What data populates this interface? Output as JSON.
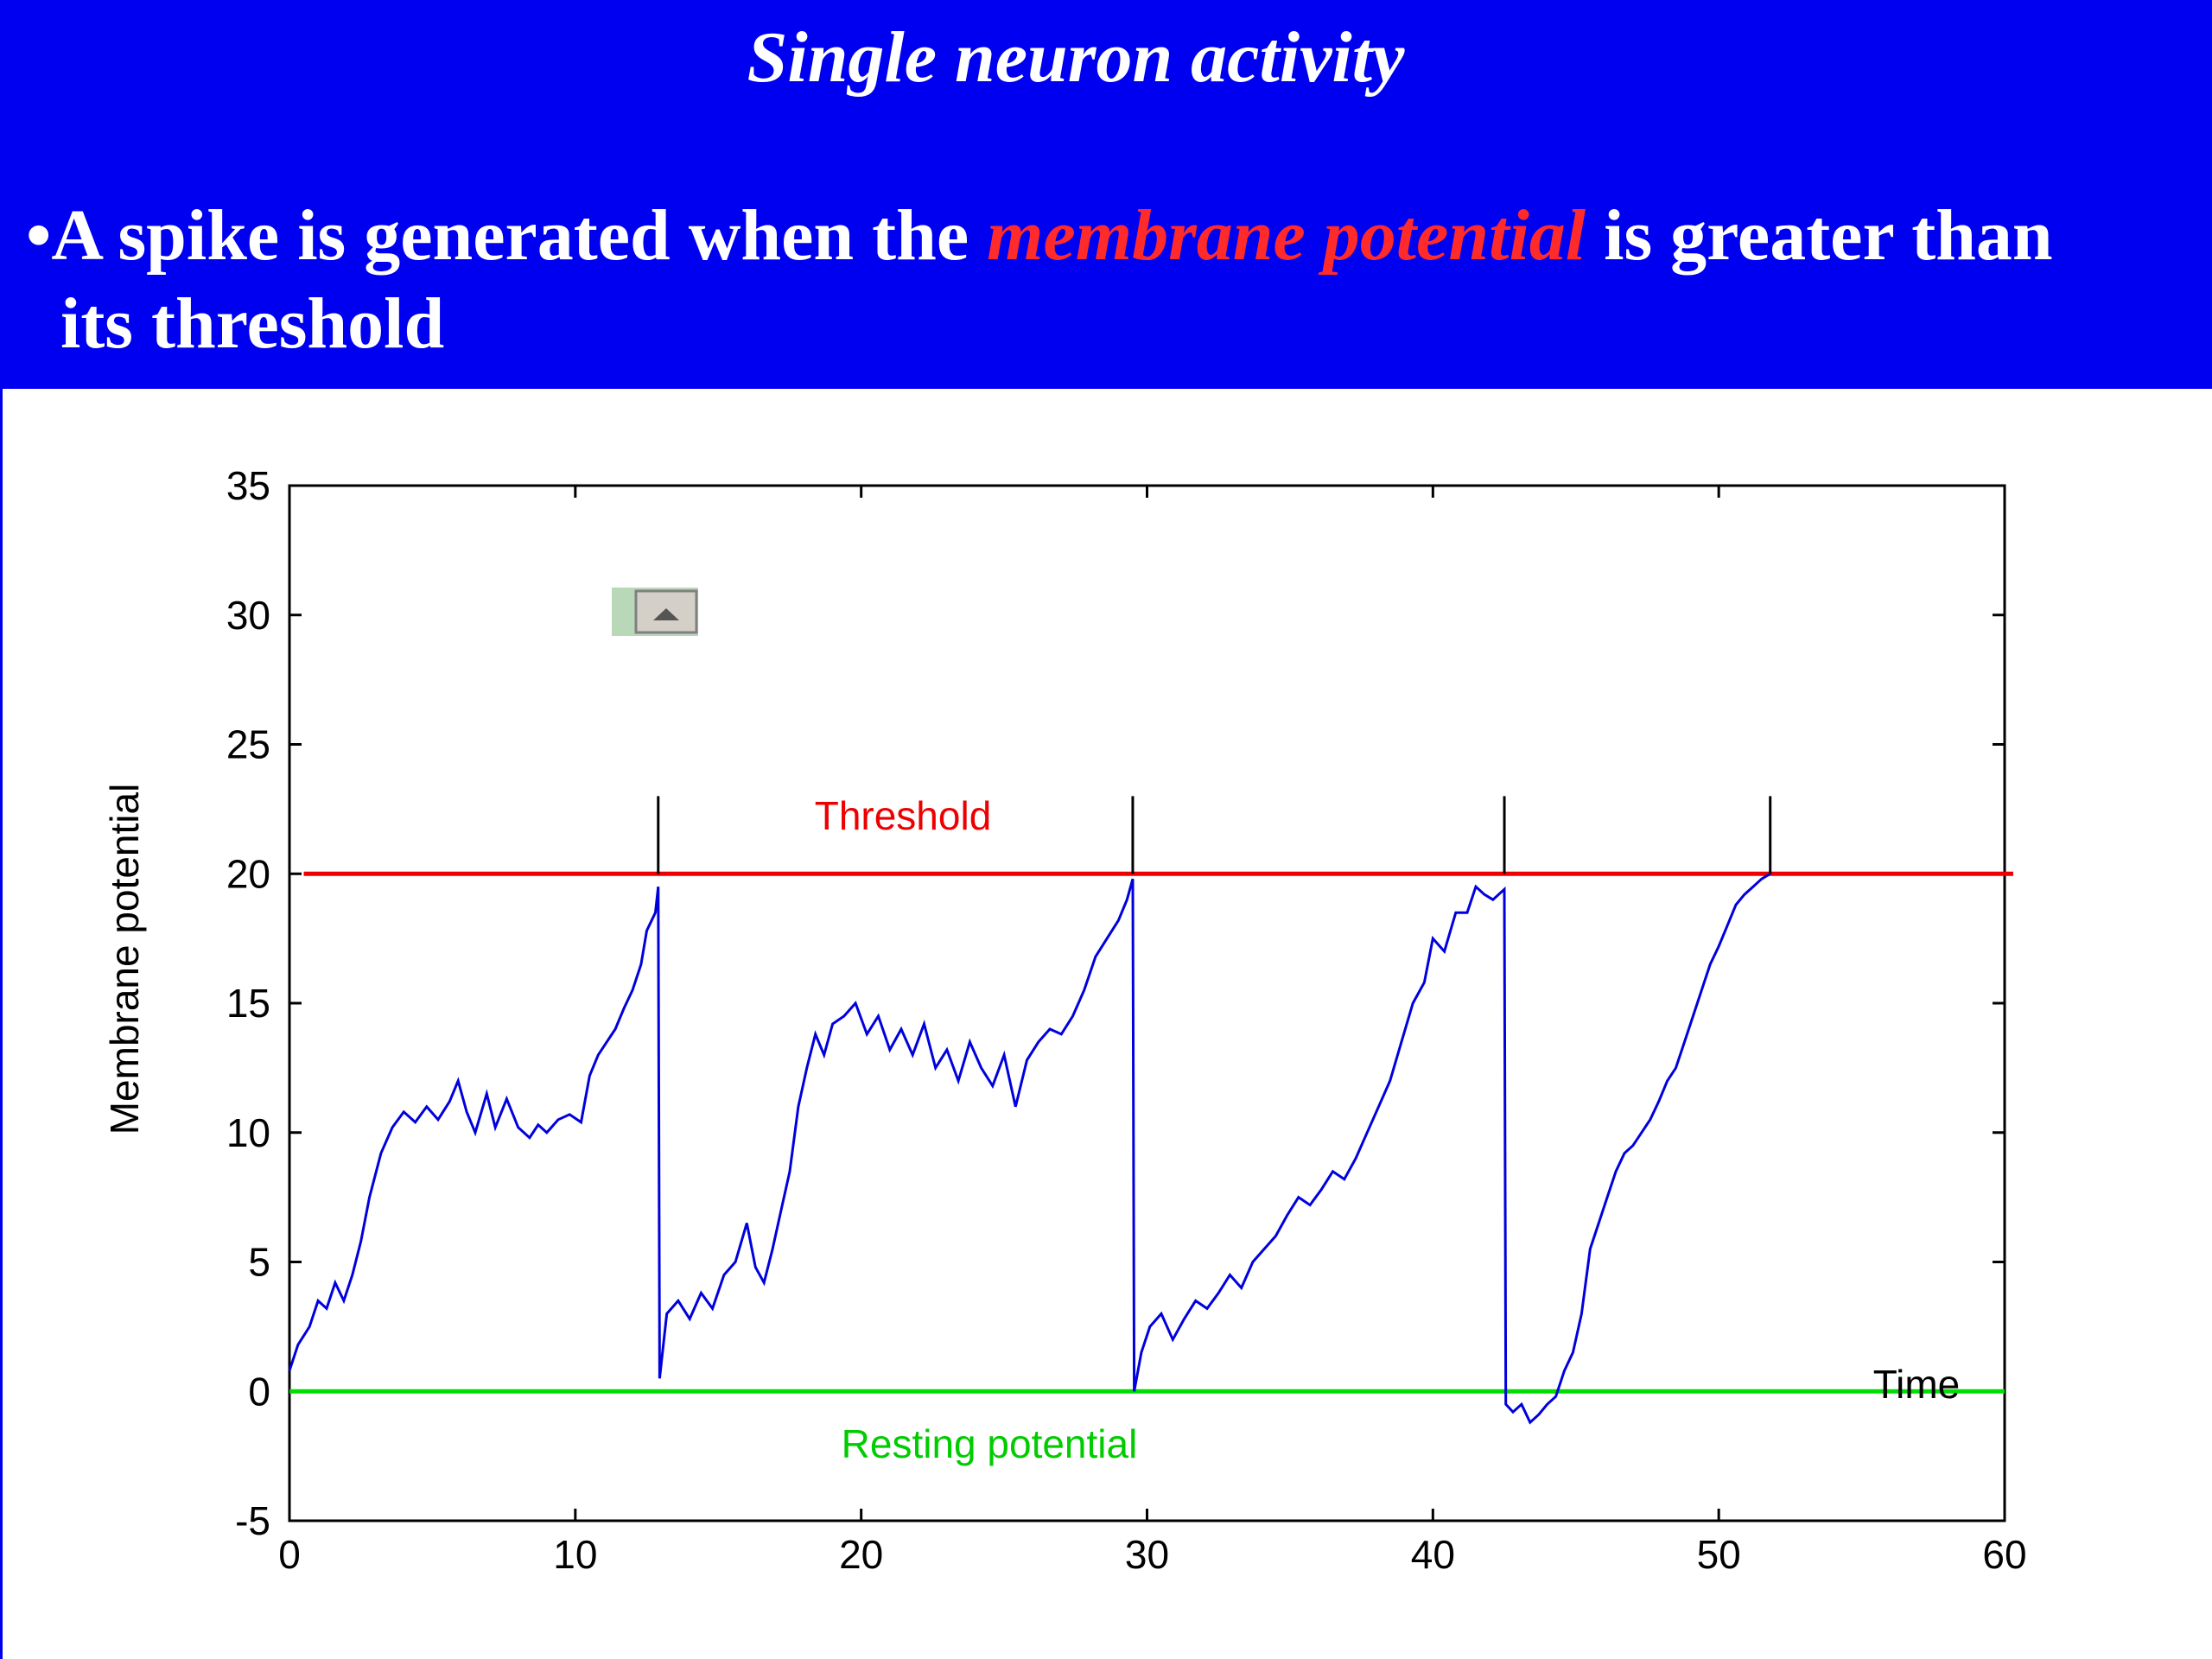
{
  "slide": {
    "title": "Single neuron activity",
    "bullet_marker": "•",
    "bullet_pre": "A spike is generated when the ",
    "bullet_highlight": "membrane potential",
    "bullet_post": " is greater than",
    "bullet_line2": "its threshold"
  },
  "colors": {
    "header_bg": "#0000f0",
    "highlight": "#ff2a2a",
    "trace": "#0000dd",
    "threshold": "#ee0000",
    "resting": "#00dd00"
  },
  "chart_data": {
    "type": "line",
    "title": "",
    "xlabel": "Time",
    "ylabel": "Membrane potential",
    "xlim": [
      0,
      60
    ],
    "ylim": [
      -5,
      35
    ],
    "xticks": [
      0,
      10,
      20,
      30,
      40,
      50,
      60
    ],
    "yticks": [
      -5,
      0,
      5,
      10,
      15,
      20,
      25,
      30,
      35
    ],
    "grid": false,
    "threshold": {
      "label": "Threshold",
      "value": 20
    },
    "resting": {
      "label": "Resting potential",
      "value": 0
    },
    "spike_times": [
      12.9,
      29.5,
      42.5,
      51.8
    ],
    "series": [
      {
        "name": "",
        "x": [
          0,
          0.3,
          0.7,
          1.0,
          1.3,
          1.6,
          1.9,
          2.2,
          2.5,
          2.8,
          3.2,
          3.6,
          4.0,
          4.4,
          4.8,
          5.2,
          5.6,
          5.9,
          6.2,
          6.5,
          6.9,
          7.2,
          7.6,
          8.0,
          8.4,
          8.7,
          9.0,
          9.4,
          9.8,
          10.2,
          10.5,
          10.8,
          11.1,
          11.4,
          11.7,
          12.0,
          12.3,
          12.5,
          12.8,
          12.9,
          12.95,
          13.2,
          13.6,
          14.0,
          14.4,
          14.8,
          15.2,
          15.6,
          16.0,
          16.3,
          16.6,
          16.9,
          17.2,
          17.5,
          17.8,
          18.1,
          18.4,
          18.7,
          19.0,
          19.4,
          19.8,
          20.2,
          20.6,
          21.0,
          21.4,
          21.8,
          22.2,
          22.6,
          23.0,
          23.4,
          23.8,
          24.2,
          24.6,
          25.0,
          25.4,
          25.8,
          26.2,
          26.6,
          27.0,
          27.4,
          27.8,
          28.2,
          28.6,
          29.0,
          29.3,
          29.5,
          29.55,
          29.8,
          30.1,
          30.5,
          30.9,
          31.3,
          31.7,
          32.1,
          32.5,
          32.9,
          33.3,
          33.7,
          34.1,
          34.5,
          34.9,
          35.3,
          35.7,
          36.1,
          36.5,
          36.9,
          37.3,
          37.7,
          38.1,
          38.5,
          38.9,
          39.3,
          39.7,
          40.0,
          40.4,
          40.8,
          41.2,
          41.5,
          41.8,
          42.1,
          42.5,
          42.55,
          42.8,
          43.1,
          43.4,
          43.7,
          44.0,
          44.3,
          44.6,
          44.9,
          45.2,
          45.5,
          45.8,
          46.1,
          46.4,
          46.7,
          47.0,
          47.3,
          47.6,
          47.9,
          48.2,
          48.5,
          48.8,
          49.1,
          49.4,
          49.7,
          50.0,
          50.3,
          50.6,
          50.9,
          51.2,
          51.5,
          51.8
        ],
        "y": [
          0.8,
          1.8,
          2.5,
          3.5,
          3.2,
          4.2,
          3.5,
          4.5,
          5.8,
          7.5,
          9.2,
          10.2,
          10.8,
          10.4,
          11.0,
          10.5,
          11.2,
          12.0,
          10.8,
          10.0,
          11.5,
          10.2,
          11.3,
          10.2,
          9.8,
          10.3,
          10.0,
          10.5,
          10.7,
          10.4,
          12.2,
          13.0,
          13.5,
          14.0,
          14.8,
          15.5,
          16.5,
          17.8,
          18.5,
          19.5,
          0.5,
          3.0,
          3.5,
          2.8,
          3.8,
          3.2,
          4.5,
          5.0,
          6.5,
          4.8,
          4.2,
          5.5,
          7.0,
          8.5,
          11.0,
          12.5,
          13.8,
          13.0,
          14.2,
          14.5,
          15.0,
          13.8,
          14.5,
          13.2,
          14.0,
          13.0,
          14.2,
          12.5,
          13.2,
          12.0,
          13.5,
          12.5,
          11.8,
          13.0,
          11.0,
          12.8,
          13.5,
          14.0,
          13.8,
          14.5,
          15.5,
          16.8,
          17.5,
          18.2,
          19.0,
          19.8,
          0.0,
          1.5,
          2.5,
          3.0,
          2.0,
          2.8,
          3.5,
          3.2,
          3.8,
          4.5,
          4.0,
          5.0,
          5.5,
          6.0,
          6.8,
          7.5,
          7.2,
          7.8,
          8.5,
          8.2,
          9.0,
          10.0,
          11.0,
          12.0,
          13.5,
          15.0,
          15.8,
          17.5,
          17.0,
          18.5,
          18.5,
          19.5,
          19.2,
          19.0,
          19.4,
          -0.5,
          -0.8,
          -0.5,
          -1.2,
          -0.9,
          -0.5,
          -0.2,
          0.8,
          1.5,
          3.0,
          5.5,
          6.5,
          7.5,
          8.5,
          9.2,
          9.5,
          10.0,
          10.5,
          11.2,
          12.0,
          12.5,
          13.5,
          14.5,
          15.5,
          16.5,
          17.2,
          18.0,
          18.8,
          19.2,
          19.5,
          19.8,
          20.0
        ]
      }
    ]
  }
}
